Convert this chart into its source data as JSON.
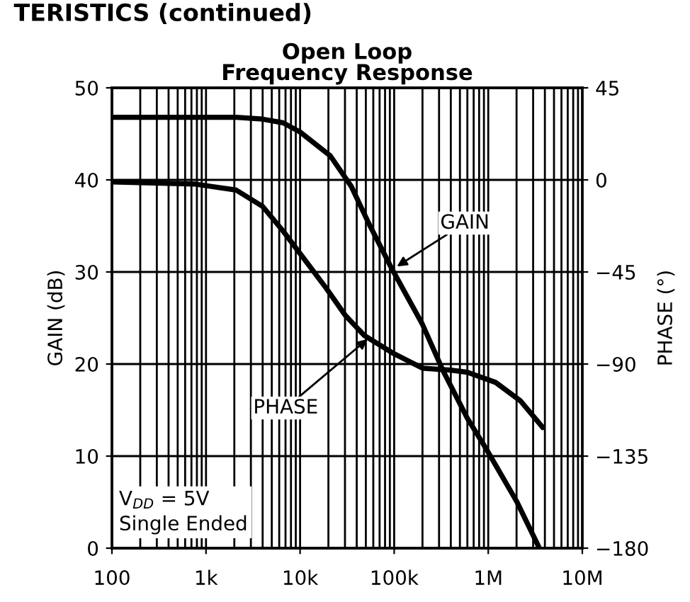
{
  "chart_data": {
    "type": "line",
    "title": "Open Loop\nFrequency Response",
    "xlabel": null,
    "ylabel": "GAIN (dB)",
    "y2label": "PHASE (°)",
    "annotations": [
      "TERISTICS (continued)",
      {
        "text": "GAIN",
        "x": 107000,
        "y": 30.6
      },
      {
        "text": "PHASE",
        "x": 52000,
        "y": 22.7
      },
      "V$_{DD}$ = 5V\nSingle Ended"
    ],
    "log": "x",
    "grid": true,
    "marker": "none",
    "line_style": "solid",
    "xlim": [
      100,
      10000000
    ],
    "xticks": [
      {
        "value": 100,
        "label": "100"
      },
      {
        "value": 1000,
        "label": "1k"
      },
      {
        "value": 10000,
        "label": "10k"
      },
      {
        "value": 100000,
        "label": "100k"
      },
      {
        "value": 1000000,
        "label": "1M"
      },
      {
        "value": 10000000,
        "label": "10M"
      }
    ],
    "ylim": [
      0,
      50
    ],
    "yticks": [
      0,
      10,
      20,
      30,
      40,
      50
    ],
    "y2lim": [
      -180,
      45
    ],
    "y2ticks": [
      -180,
      -135,
      -90,
      -45,
      0,
      45
    ],
    "series": [
      {
        "color": "#000000",
        "x": [
          100,
          1000,
          2100,
          4000,
          6600,
          10000,
          21000,
          35000,
          53000,
          95000,
          200000,
          330000,
          600000,
          950000,
          2000000,
          3500000
        ],
        "values": [
          46.8,
          46.8,
          46.8,
          46.6,
          46.2,
          45.2,
          42.6,
          39.3,
          35.4,
          30.3,
          24.3,
          19.3,
          14.1,
          10.8,
          5.1,
          0
        ]
      },
      {
        "color": "#000000",
        "axis": "y2",
        "x": [
          100,
          750,
          2100,
          4000,
          6600,
          10000,
          19000,
          30000,
          48000,
          100000,
          200000,
          400000,
          600000,
          1200000,
          2200000,
          3800000
        ],
        "values": [
          -1,
          -2,
          -5,
          -13,
          -25,
          -36,
          -53,
          -66,
          -76,
          -85,
          -92,
          -93,
          -94,
          -99,
          -108,
          -121
        ]
      }
    ]
  }
}
